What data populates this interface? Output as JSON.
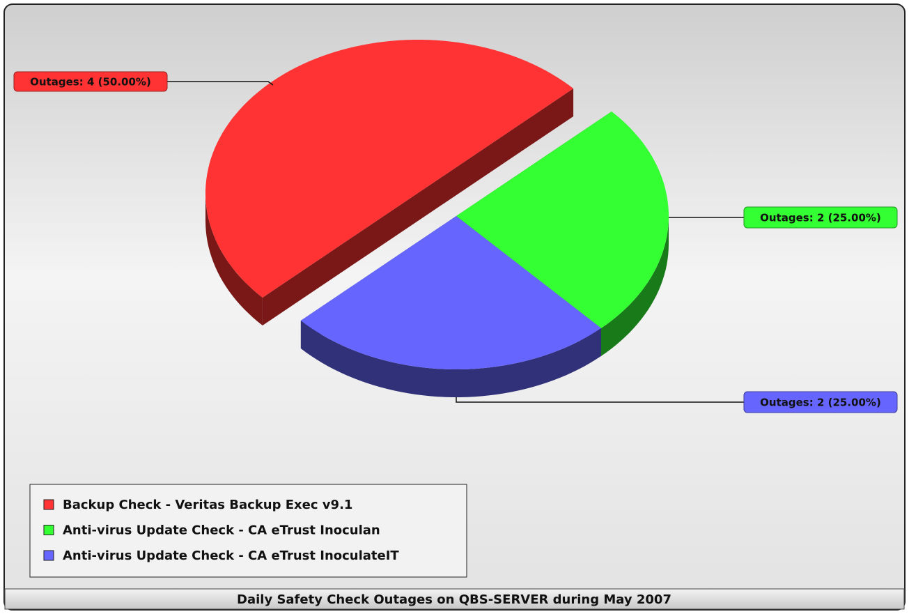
{
  "chart_data": {
    "type": "pie",
    "title": "Daily Safety Check Outages on QBS-SERVER during May 2007",
    "categories": [
      "Backup Check - Veritas Backup Exec v9.1",
      "Anti-virus Update Check - CA eTrust Inoculan",
      "Anti-virus Update Check - CA eTrust InoculateIT"
    ],
    "values": [
      4,
      2,
      2
    ],
    "value_labels": [
      "Outages: 4 (50.00%)",
      "Outages: 2 (25.00%)",
      "Outages: 2 (25.00%)"
    ],
    "colors": [
      "#ff3333",
      "#33ff33",
      "#6666ff"
    ],
    "legend": "bottom-left"
  }
}
